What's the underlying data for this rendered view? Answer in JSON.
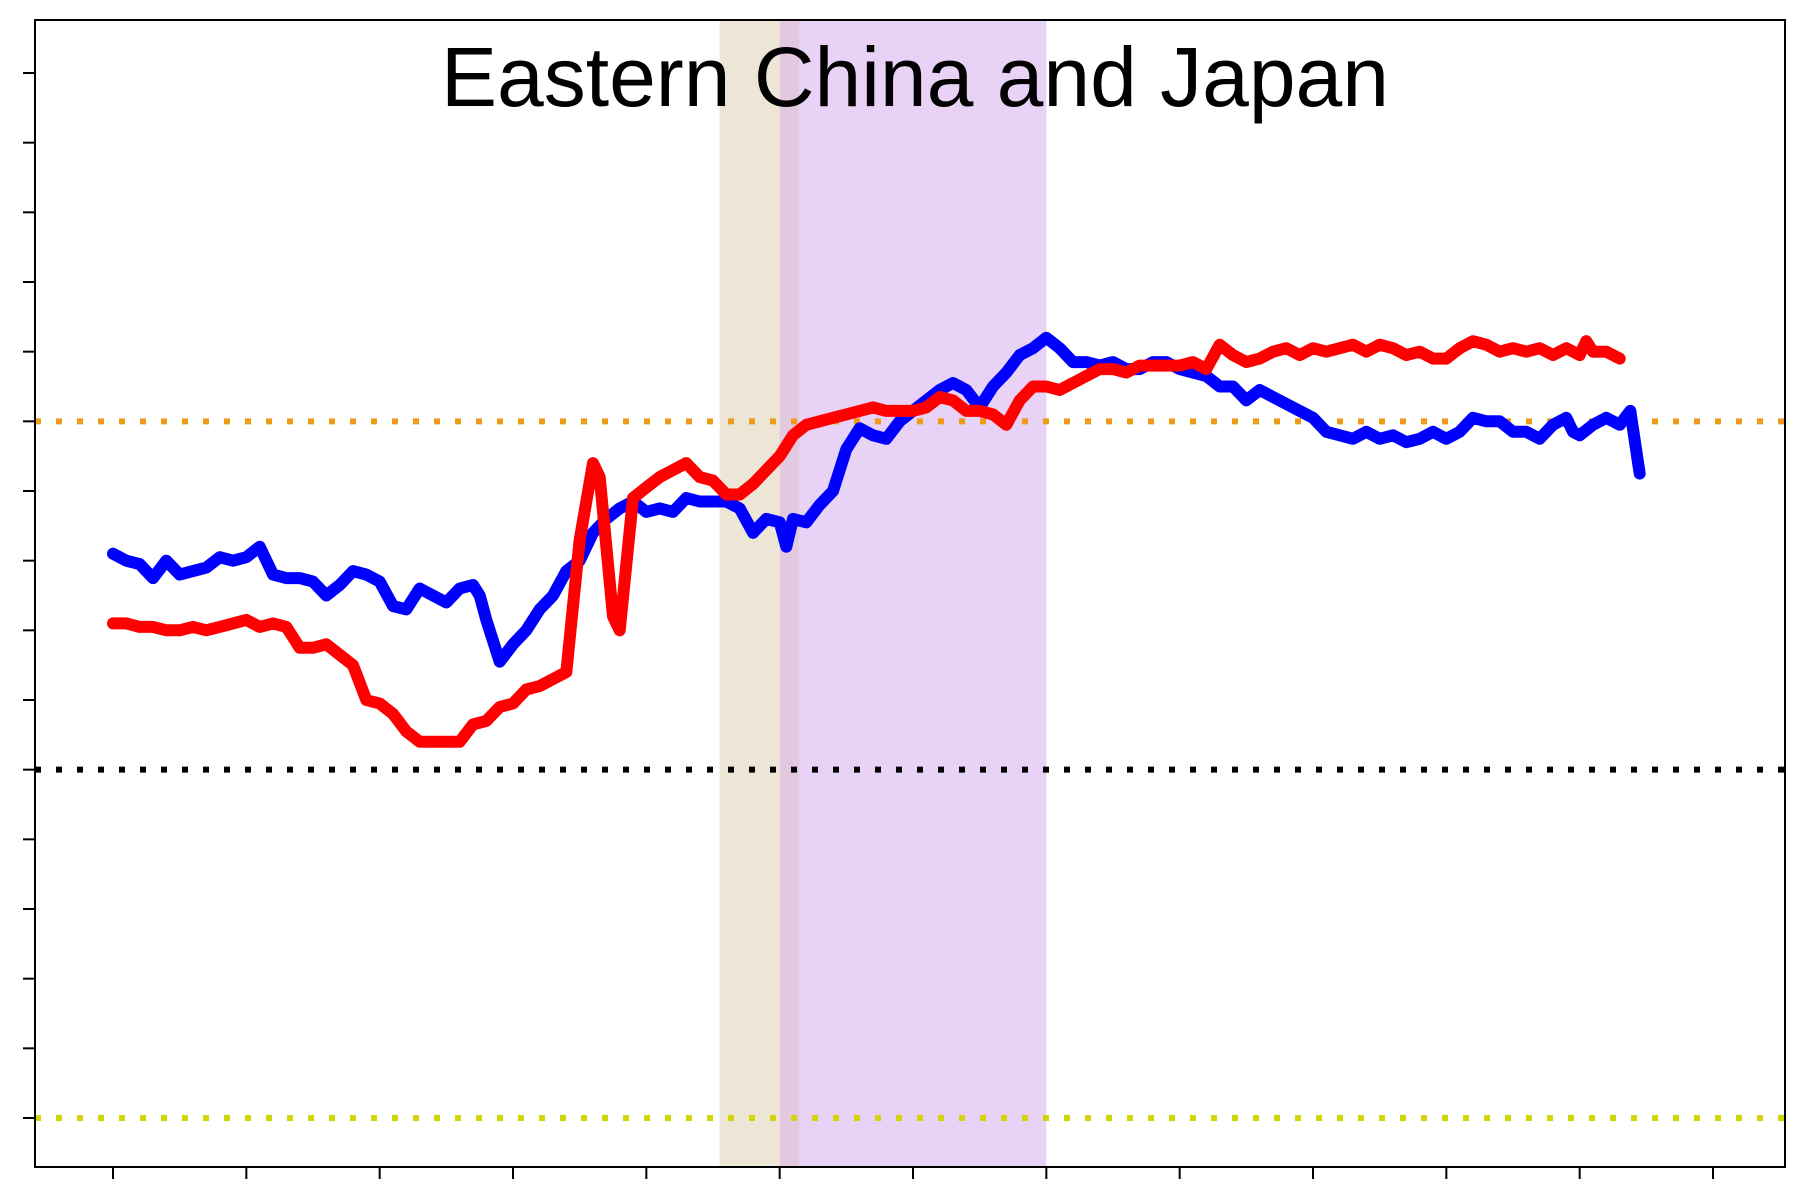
{
  "chart_data": {
    "type": "line",
    "title": "Eastern China and Japan",
    "xlabel": "",
    "ylabel": "",
    "xlim": [
      0,
      12
    ],
    "ylim": [
      -5.5,
      10.5
    ],
    "x_ticks": [
      0,
      1,
      2,
      3,
      4,
      5,
      6,
      7,
      8,
      9,
      10,
      11,
      12
    ],
    "y_ticks": [
      -5,
      -4,
      -3,
      -2,
      -1,
      0,
      1,
      2,
      3,
      4,
      5,
      6,
      7,
      8,
      9,
      10
    ],
    "tick_labels_visible": false,
    "grid": false,
    "legend": "none",
    "reference_lines": [
      {
        "y": 5,
        "color": "#f09a1a",
        "style": "dotted"
      },
      {
        "y": 0,
        "color": "#000000",
        "style": "dotted"
      },
      {
        "y": -5,
        "color": "#d4d40a",
        "style": "dotted"
      }
    ],
    "shaded_regions": [
      {
        "x_start": 4.55,
        "x_end": 5.0,
        "color": "#ede5d6"
      },
      {
        "x_start": 5.0,
        "x_end": 5.15,
        "color": "#e3c9e0"
      },
      {
        "x_start": 5.15,
        "x_end": 7.0,
        "color": "#e8d3f7"
      }
    ],
    "series": [
      {
        "color": "#0000ff",
        "points": [
          [
            0.0,
            3.1
          ],
          [
            0.1,
            3.0
          ],
          [
            0.2,
            2.95
          ],
          [
            0.3,
            2.75
          ],
          [
            0.4,
            3.0
          ],
          [
            0.5,
            2.8
          ],
          [
            0.6,
            2.85
          ],
          [
            0.7,
            2.9
          ],
          [
            0.8,
            3.05
          ],
          [
            0.9,
            3.0
          ],
          [
            1.0,
            3.05
          ],
          [
            1.1,
            3.2
          ],
          [
            1.2,
            2.8
          ],
          [
            1.3,
            2.75
          ],
          [
            1.4,
            2.75
          ],
          [
            1.5,
            2.7
          ],
          [
            1.6,
            2.5
          ],
          [
            1.7,
            2.65
          ],
          [
            1.8,
            2.85
          ],
          [
            1.9,
            2.8
          ],
          [
            2.0,
            2.7
          ],
          [
            2.1,
            2.35
          ],
          [
            2.2,
            2.3
          ],
          [
            2.3,
            2.6
          ],
          [
            2.4,
            2.5
          ],
          [
            2.5,
            2.4
          ],
          [
            2.6,
            2.6
          ],
          [
            2.7,
            2.65
          ],
          [
            2.75,
            2.5
          ],
          [
            2.8,
            2.15
          ],
          [
            2.9,
            1.55
          ],
          [
            3.0,
            1.8
          ],
          [
            3.1,
            2.0
          ],
          [
            3.2,
            2.3
          ],
          [
            3.3,
            2.5
          ],
          [
            3.4,
            2.85
          ],
          [
            3.5,
            3.0
          ],
          [
            3.6,
            3.4
          ],
          [
            3.7,
            3.6
          ],
          [
            3.8,
            3.75
          ],
          [
            3.9,
            3.85
          ],
          [
            4.0,
            3.7
          ],
          [
            4.1,
            3.75
          ],
          [
            4.2,
            3.7
          ],
          [
            4.3,
            3.9
          ],
          [
            4.4,
            3.85
          ],
          [
            4.5,
            3.85
          ],
          [
            4.6,
            3.85
          ],
          [
            4.7,
            3.75
          ],
          [
            4.8,
            3.4
          ],
          [
            4.9,
            3.6
          ],
          [
            5.0,
            3.55
          ],
          [
            5.05,
            3.2
          ],
          [
            5.1,
            3.6
          ],
          [
            5.2,
            3.55
          ],
          [
            5.3,
            3.8
          ],
          [
            5.4,
            4.0
          ],
          [
            5.5,
            4.6
          ],
          [
            5.6,
            4.9
          ],
          [
            5.7,
            4.8
          ],
          [
            5.8,
            4.75
          ],
          [
            5.9,
            5.0
          ],
          [
            6.0,
            5.15
          ],
          [
            6.1,
            5.3
          ],
          [
            6.2,
            5.45
          ],
          [
            6.3,
            5.55
          ],
          [
            6.4,
            5.45
          ],
          [
            6.5,
            5.2
          ],
          [
            6.6,
            5.5
          ],
          [
            6.7,
            5.7
          ],
          [
            6.8,
            5.95
          ],
          [
            6.9,
            6.05
          ],
          [
            7.0,
            6.2
          ],
          [
            7.1,
            6.05
          ],
          [
            7.2,
            5.85
          ],
          [
            7.3,
            5.85
          ],
          [
            7.4,
            5.8
          ],
          [
            7.5,
            5.85
          ],
          [
            7.6,
            5.75
          ],
          [
            7.7,
            5.75
          ],
          [
            7.8,
            5.85
          ],
          [
            7.9,
            5.85
          ],
          [
            8.0,
            5.75
          ],
          [
            8.1,
            5.7
          ],
          [
            8.2,
            5.65
          ],
          [
            8.3,
            5.5
          ],
          [
            8.4,
            5.5
          ],
          [
            8.5,
            5.3
          ],
          [
            8.6,
            5.45
          ],
          [
            8.7,
            5.35
          ],
          [
            8.8,
            5.25
          ],
          [
            8.9,
            5.15
          ],
          [
            9.0,
            5.05
          ],
          [
            9.1,
            4.85
          ],
          [
            9.2,
            4.8
          ],
          [
            9.3,
            4.75
          ],
          [
            9.4,
            4.85
          ],
          [
            9.5,
            4.75
          ],
          [
            9.6,
            4.8
          ],
          [
            9.7,
            4.7
          ],
          [
            9.8,
            4.75
          ],
          [
            9.9,
            4.85
          ],
          [
            10.0,
            4.75
          ],
          [
            10.1,
            4.85
          ],
          [
            10.2,
            5.05
          ],
          [
            10.3,
            5.0
          ],
          [
            10.4,
            5.0
          ],
          [
            10.5,
            4.85
          ],
          [
            10.6,
            4.85
          ],
          [
            10.7,
            4.75
          ],
          [
            10.8,
            4.95
          ],
          [
            10.9,
            5.05
          ],
          [
            10.95,
            4.85
          ],
          [
            11.0,
            4.8
          ],
          [
            11.1,
            4.95
          ],
          [
            11.2,
            5.05
          ],
          [
            11.3,
            4.95
          ],
          [
            11.38,
            5.15
          ],
          [
            11.45,
            4.25
          ]
        ]
      },
      {
        "color": "#ff0000",
        "points": [
          [
            0.0,
            2.1
          ],
          [
            0.1,
            2.1
          ],
          [
            0.2,
            2.05
          ],
          [
            0.3,
            2.05
          ],
          [
            0.4,
            2.0
          ],
          [
            0.5,
            2.0
          ],
          [
            0.6,
            2.05
          ],
          [
            0.7,
            2.0
          ],
          [
            0.8,
            2.05
          ],
          [
            0.9,
            2.1
          ],
          [
            1.0,
            2.15
          ],
          [
            1.1,
            2.05
          ],
          [
            1.2,
            2.1
          ],
          [
            1.3,
            2.05
          ],
          [
            1.4,
            1.75
          ],
          [
            1.5,
            1.75
          ],
          [
            1.6,
            1.8
          ],
          [
            1.7,
            1.65
          ],
          [
            1.8,
            1.5
          ],
          [
            1.9,
            1.0
          ],
          [
            2.0,
            0.95
          ],
          [
            2.1,
            0.8
          ],
          [
            2.2,
            0.55
          ],
          [
            2.3,
            0.4
          ],
          [
            2.4,
            0.4
          ],
          [
            2.5,
            0.4
          ],
          [
            2.6,
            0.4
          ],
          [
            2.7,
            0.65
          ],
          [
            2.8,
            0.7
          ],
          [
            2.9,
            0.9
          ],
          [
            3.0,
            0.95
          ],
          [
            3.1,
            1.15
          ],
          [
            3.2,
            1.2
          ],
          [
            3.3,
            1.3
          ],
          [
            3.4,
            1.4
          ],
          [
            3.5,
            3.3
          ],
          [
            3.6,
            4.4
          ],
          [
            3.65,
            4.2
          ],
          [
            3.75,
            2.2
          ],
          [
            3.8,
            2.0
          ],
          [
            3.9,
            3.9
          ],
          [
            4.0,
            4.05
          ],
          [
            4.1,
            4.2
          ],
          [
            4.2,
            4.3
          ],
          [
            4.3,
            4.4
          ],
          [
            4.4,
            4.2
          ],
          [
            4.5,
            4.15
          ],
          [
            4.6,
            3.95
          ],
          [
            4.7,
            3.95
          ],
          [
            4.8,
            4.1
          ],
          [
            4.9,
            4.3
          ],
          [
            5.0,
            4.5
          ],
          [
            5.1,
            4.8
          ],
          [
            5.2,
            4.95
          ],
          [
            5.3,
            5.0
          ],
          [
            5.4,
            5.05
          ],
          [
            5.5,
            5.1
          ],
          [
            5.6,
            5.15
          ],
          [
            5.7,
            5.2
          ],
          [
            5.8,
            5.15
          ],
          [
            5.9,
            5.15
          ],
          [
            6.0,
            5.15
          ],
          [
            6.1,
            5.2
          ],
          [
            6.2,
            5.35
          ],
          [
            6.3,
            5.3
          ],
          [
            6.4,
            5.15
          ],
          [
            6.5,
            5.15
          ],
          [
            6.6,
            5.1
          ],
          [
            6.7,
            4.95
          ],
          [
            6.8,
            5.3
          ],
          [
            6.9,
            5.5
          ],
          [
            7.0,
            5.5
          ],
          [
            7.1,
            5.45
          ],
          [
            7.2,
            5.55
          ],
          [
            7.3,
            5.65
          ],
          [
            7.4,
            5.75
          ],
          [
            7.5,
            5.75
          ],
          [
            7.6,
            5.7
          ],
          [
            7.7,
            5.8
          ],
          [
            7.8,
            5.8
          ],
          [
            7.9,
            5.8
          ],
          [
            8.0,
            5.8
          ],
          [
            8.1,
            5.85
          ],
          [
            8.2,
            5.75
          ],
          [
            8.3,
            6.1
          ],
          [
            8.4,
            5.95
          ],
          [
            8.5,
            5.85
          ],
          [
            8.6,
            5.9
          ],
          [
            8.7,
            6.0
          ],
          [
            8.8,
            6.05
          ],
          [
            8.9,
            5.95
          ],
          [
            9.0,
            6.05
          ],
          [
            9.1,
            6.0
          ],
          [
            9.2,
            6.05
          ],
          [
            9.3,
            6.1
          ],
          [
            9.4,
            6.0
          ],
          [
            9.5,
            6.1
          ],
          [
            9.6,
            6.05
          ],
          [
            9.7,
            5.95
          ],
          [
            9.8,
            6.0
          ],
          [
            9.9,
            5.9
          ],
          [
            10.0,
            5.9
          ],
          [
            10.1,
            6.05
          ],
          [
            10.2,
            6.15
          ],
          [
            10.3,
            6.1
          ],
          [
            10.4,
            6.0
          ],
          [
            10.5,
            6.05
          ],
          [
            10.6,
            6.0
          ],
          [
            10.7,
            6.05
          ],
          [
            10.8,
            5.95
          ],
          [
            10.9,
            6.05
          ],
          [
            11.0,
            5.95
          ],
          [
            11.05,
            6.15
          ],
          [
            11.1,
            6.0
          ],
          [
            11.2,
            6.0
          ],
          [
            11.3,
            5.9
          ]
        ]
      }
    ]
  }
}
